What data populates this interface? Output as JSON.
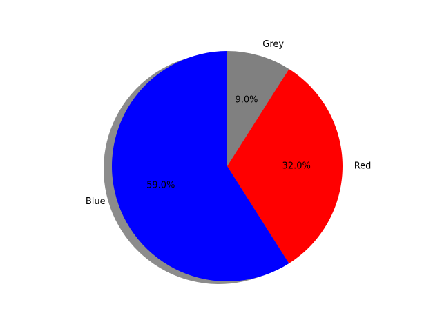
{
  "chart_data": {
    "type": "pie",
    "title": "",
    "slices": [
      {
        "label": "Grey",
        "value": 9.0,
        "percent_label": "9.0%",
        "color": "#808080"
      },
      {
        "label": "Red",
        "value": 32.0,
        "percent_label": "32.0%",
        "color": "#ff0000"
      },
      {
        "label": "Blue",
        "value": 59.0,
        "percent_label": "59.0%",
        "color": "#0000ff"
      }
    ],
    "start_angle_deg": 90,
    "direction": "clockwise",
    "shadow": true,
    "legend": "none"
  }
}
